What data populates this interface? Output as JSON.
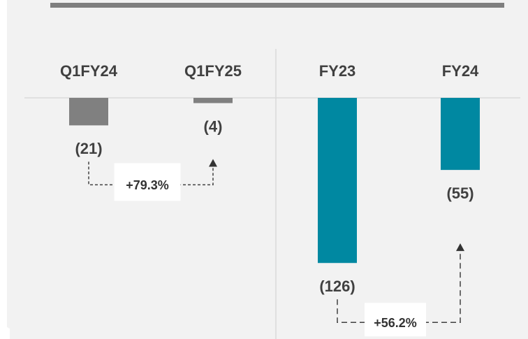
{
  "chart_data": [
    {
      "type": "bar",
      "categories": [
        "Q1FY24",
        "Q1FY25"
      ],
      "values": [
        -21,
        -4
      ],
      "value_labels": [
        "(21)",
        "(4)"
      ],
      "color": "#808080",
      "annotation": "+79.3%"
    },
    {
      "type": "bar",
      "categories": [
        "FY23",
        "FY24"
      ],
      "values": [
        -126,
        -55
      ],
      "value_labels": [
        "(126)",
        "(55)"
      ],
      "color": "#0088a1",
      "annotation": "+56.2%"
    }
  ]
}
